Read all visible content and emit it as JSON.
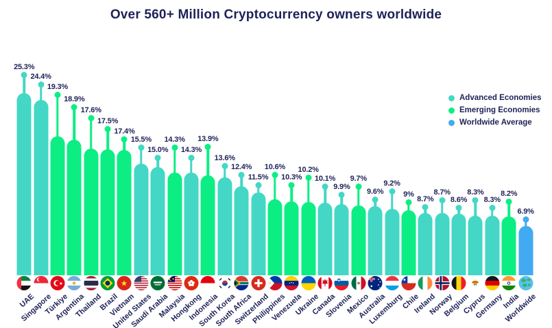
{
  "title": "Over 560+ Million Cryptocurrency owners worldwide",
  "colors": {
    "advanced": "#44d7c5",
    "emerging": "#0cee84",
    "worldwide": "#42aaf2",
    "text": "#1d2257",
    "background": "#ffffff"
  },
  "legend": {
    "position": "right",
    "items": [
      {
        "label": "Advanced Economies",
        "key": "advanced",
        "color": "#44d7c5"
      },
      {
        "label": "Emerging Economies",
        "key": "emerging",
        "color": "#0cee84"
      },
      {
        "label": "Worldwide Average",
        "key": "worldwide",
        "color": "#42aaf2"
      }
    ]
  },
  "chart_data": {
    "type": "bar",
    "title": "Over 560+ Million Cryptocurrency owners worldwide",
    "unit": "%",
    "ylim": [
      0,
      27
    ],
    "grid": false,
    "axis_labels_shown": false,
    "categories": [
      "UAE",
      "Singapore",
      "Türkiye",
      "Argentina",
      "Thailand",
      "Brazil",
      "Vietnam",
      "United States",
      "Saudi Arabia",
      "Malaysia",
      "Hongkong",
      "Indonesia",
      "South Korea",
      "South Africa",
      "Switzerland",
      "Philippines",
      "Venezuela",
      "Ukraine",
      "Canada",
      "Slovenia",
      "Mexico",
      "Australia",
      "Luxemburg",
      "Chile",
      "Ireland",
      "Norway",
      "Belgium",
      "Cyprus",
      "Germany",
      "India",
      "Worldwide"
    ],
    "values": [
      25.3,
      24.4,
      19.3,
      18.9,
      17.6,
      17.5,
      17.4,
      15.5,
      15.0,
      14.3,
      14.3,
      13.9,
      13.6,
      12.4,
      11.5,
      10.6,
      10.3,
      10.2,
      10.1,
      9.9,
      9.7,
      9.6,
      9.2,
      9,
      8.7,
      8.7,
      8.6,
      8.3,
      8.3,
      8.2,
      6.9
    ],
    "value_labels": [
      "25.3%",
      "24.4%",
      "19.3%",
      "18.9%",
      "17.6%",
      "17.5%",
      "17.4%",
      "15.5%",
      "15.0%",
      "14.3%",
      "14.3%",
      "13.9%",
      "13.6%",
      "12.4%",
      "11.5%",
      "10.6%",
      "10.3%",
      "10.2%",
      "10.1%",
      "9.9%",
      "9.7%",
      "9.6%",
      "9.2%",
      "9%",
      "8.7%",
      "8.7%",
      "8.6%",
      "8.3%",
      "8.3%",
      "8.2%",
      "6.9%"
    ],
    "groups": [
      "advanced",
      "advanced",
      "emerging",
      "emerging",
      "emerging",
      "emerging",
      "emerging",
      "advanced",
      "advanced",
      "emerging",
      "advanced",
      "emerging",
      "advanced",
      "advanced",
      "advanced",
      "emerging",
      "emerging",
      "emerging",
      "advanced",
      "advanced",
      "emerging",
      "advanced",
      "advanced",
      "emerging",
      "advanced",
      "advanced",
      "advanced",
      "advanced",
      "advanced",
      "emerging",
      "worldwide"
    ],
    "flag_icons": [
      "uae-flag",
      "singapore-flag",
      "turkiye-flag",
      "argentina-flag",
      "thailand-flag",
      "brazil-flag",
      "vietnam-flag",
      "united-states-flag",
      "saudi-arabia-flag",
      "malaysia-flag",
      "hongkong-flag",
      "indonesia-flag",
      "south-korea-flag",
      "south-africa-flag",
      "switzerland-flag",
      "philippines-flag",
      "venezuela-flag",
      "ukraine-flag",
      "canada-flag",
      "slovenia-flag",
      "mexico-flag",
      "australia-flag",
      "luxemburg-flag",
      "chile-flag",
      "ireland-flag",
      "norway-flag",
      "belgium-flag",
      "cyprus-flag",
      "germany-flag",
      "india-flag",
      "worldwide-globe-icon"
    ]
  }
}
